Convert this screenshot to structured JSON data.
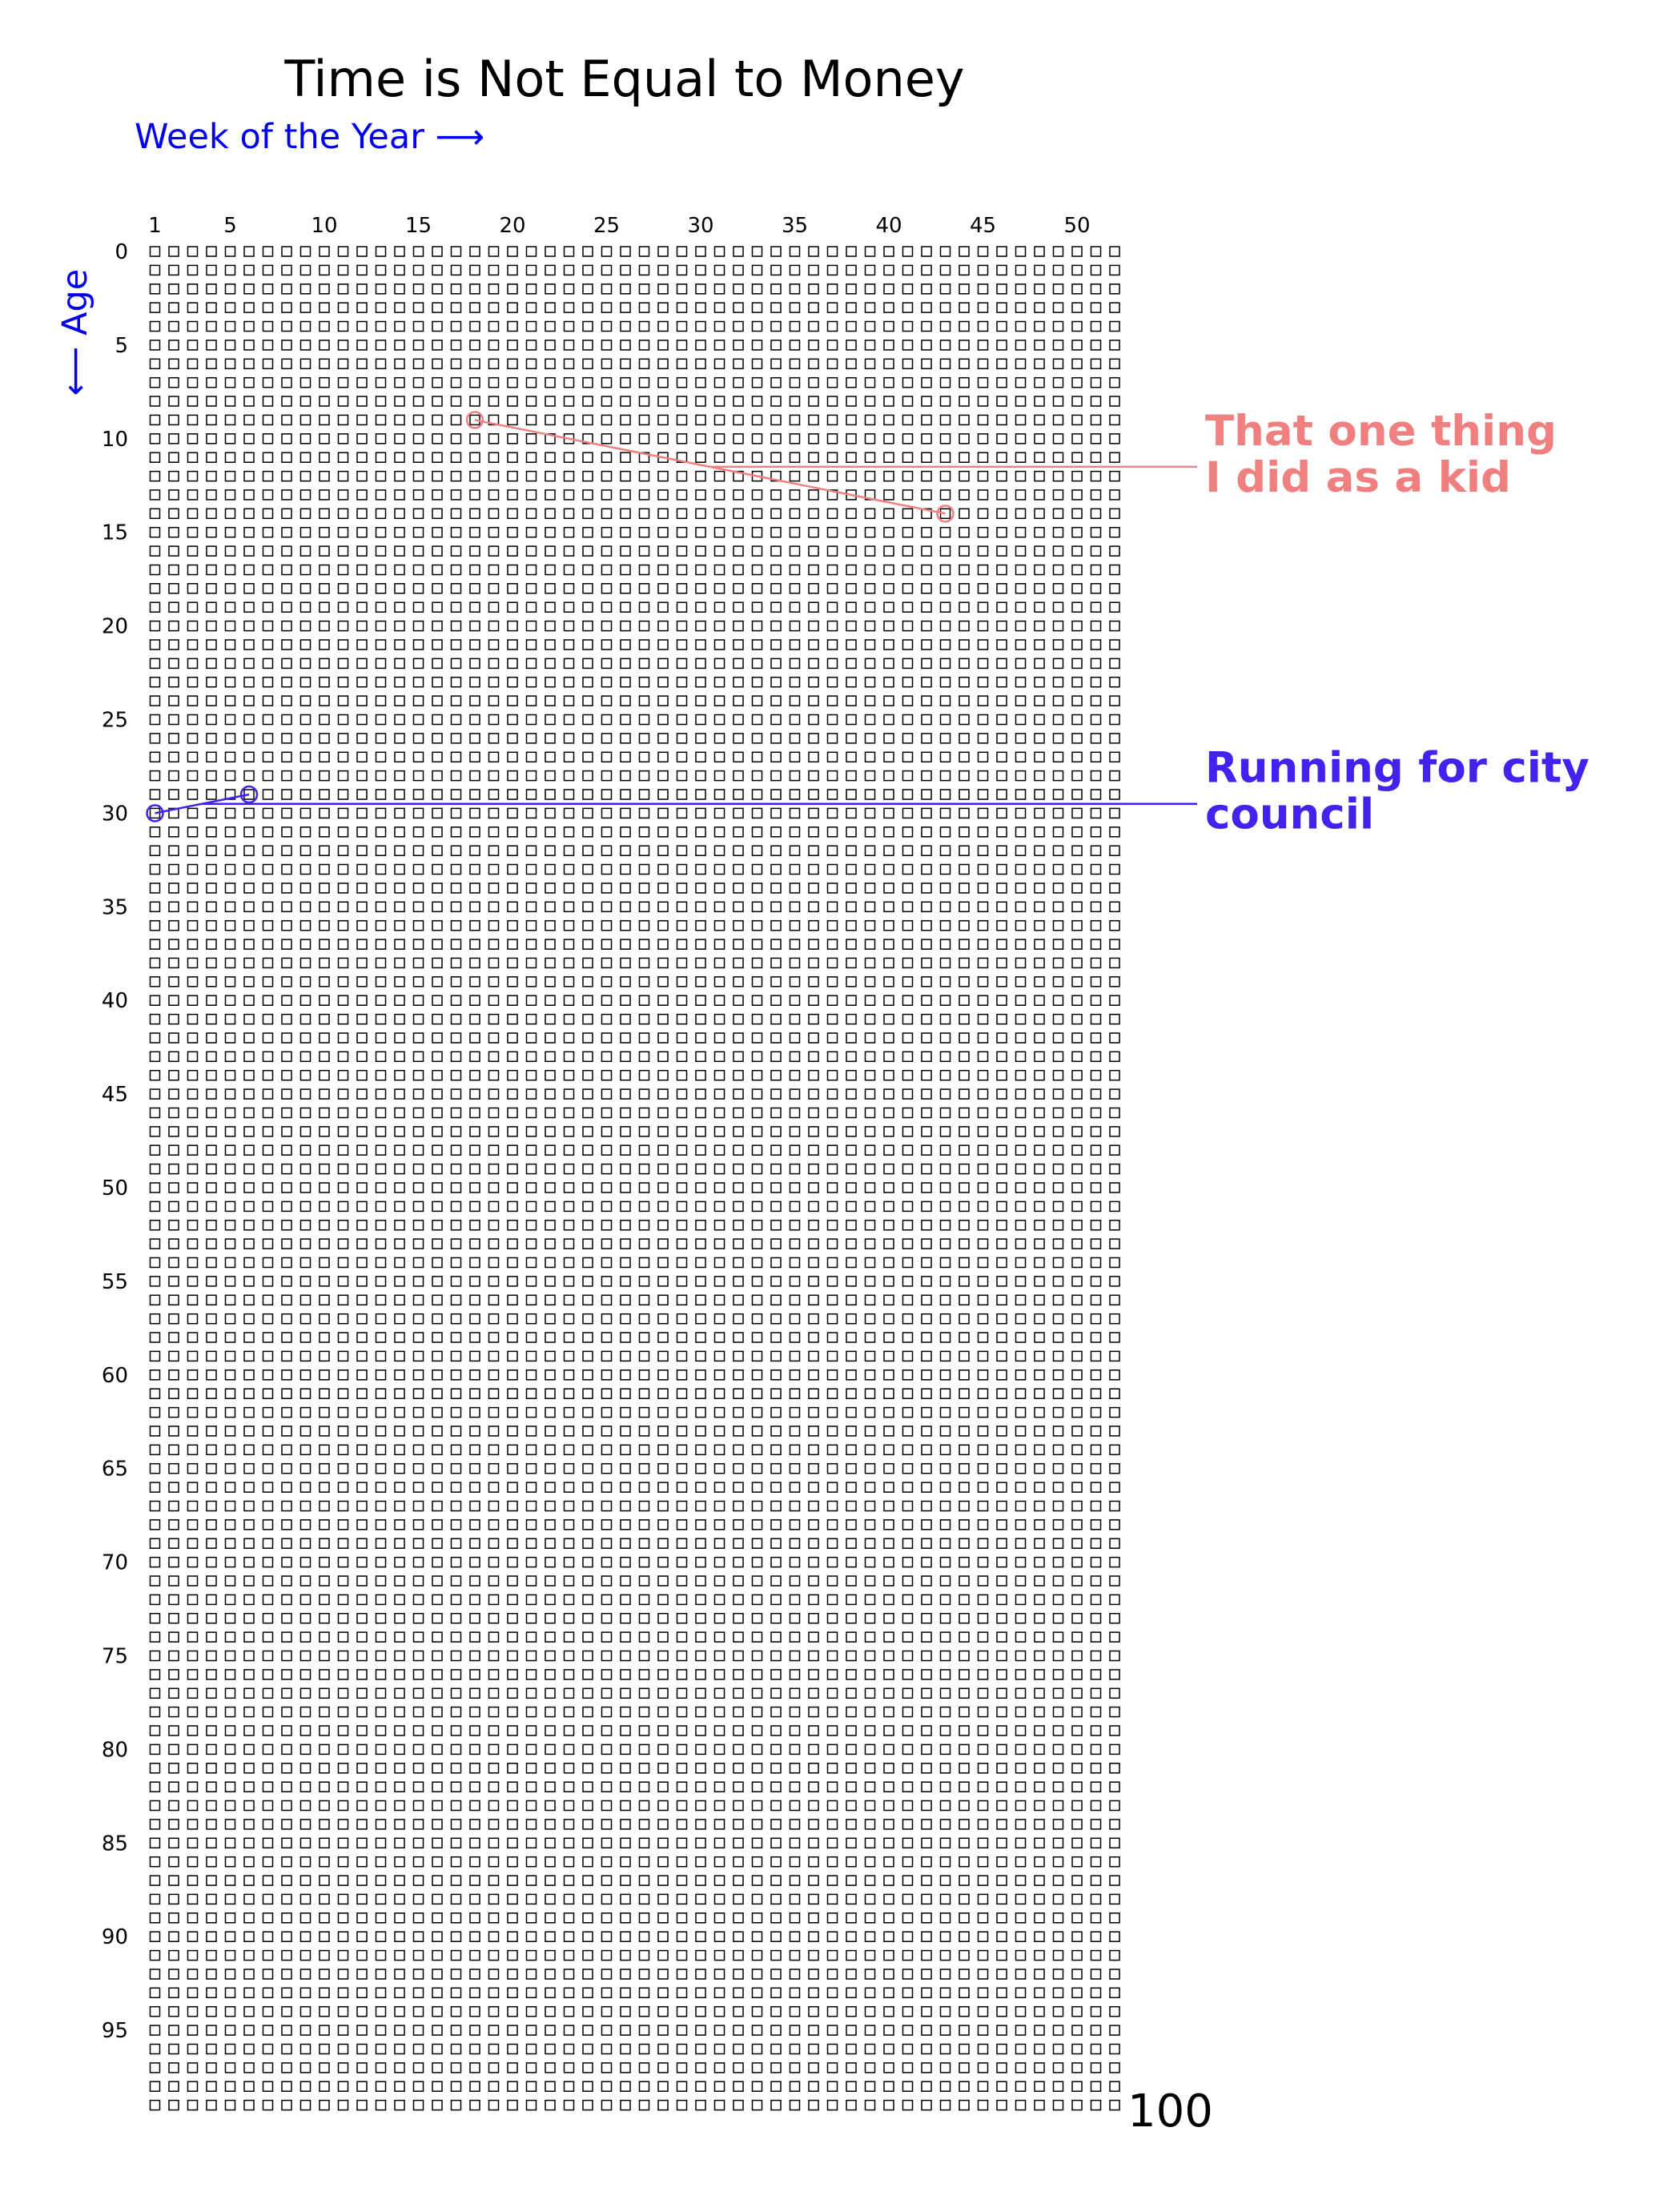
{
  "chart_data": {
    "type": "scatter",
    "title": "Time is Not Equal to Money",
    "xlabel": "Week of the Year  ⟶",
    "ylabel": "⟵  Age",
    "x_ticks": [
      1,
      5,
      10,
      15,
      20,
      25,
      30,
      35,
      40,
      45,
      50
    ],
    "y_ticks": [
      0,
      5,
      10,
      15,
      20,
      25,
      30,
      35,
      40,
      45,
      50,
      55,
      60,
      65,
      70,
      75,
      80,
      85,
      90,
      95
    ],
    "xlim": [
      1,
      52
    ],
    "ylim": [
      0,
      99
    ],
    "grid": {
      "weeks": 52,
      "years": 100,
      "marker": "square",
      "color": "#000000"
    },
    "end_label": "100",
    "annotations": [
      {
        "text_lines": [
          "That one thing",
          "I did as a kid"
        ],
        "color": "#f08080",
        "points": [
          {
            "week": 18,
            "age": 9
          },
          {
            "week": 43,
            "age": 14
          }
        ]
      },
      {
        "text_lines": [
          "Running for city",
          "council"
        ],
        "color": "#4422ee",
        "points": [
          {
            "week": 1,
            "age": 30
          },
          {
            "week": 6,
            "age": 29
          }
        ]
      }
    ],
    "axis_label_color": "#0000ee"
  }
}
